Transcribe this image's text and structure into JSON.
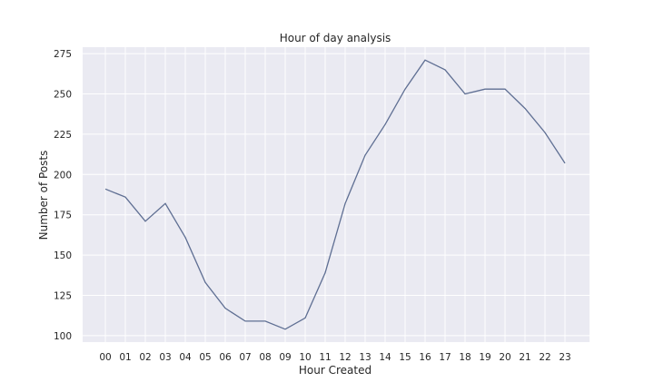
{
  "chart_data": {
    "type": "line",
    "title": "Hour of day analysis",
    "xlabel": "Hour Created",
    "ylabel": "Number of Posts",
    "categories": [
      "00",
      "01",
      "02",
      "03",
      "04",
      "05",
      "06",
      "07",
      "08",
      "09",
      "10",
      "11",
      "12",
      "13",
      "14",
      "15",
      "16",
      "17",
      "18",
      "19",
      "20",
      "21",
      "22",
      "23"
    ],
    "series": [
      {
        "values": [
          191,
          186,
          171,
          182,
          161,
          133,
          117,
          109,
          109,
          104,
          111,
          139,
          182,
          212,
          231,
          253,
          271,
          265,
          250,
          253,
          253,
          241,
          226,
          207
        ],
        "color": "#5f6f93"
      }
    ],
    "yticks": [
      100,
      125,
      150,
      175,
      200,
      225,
      250,
      275
    ],
    "ylim": [
      96,
      279
    ],
    "grid": true,
    "background_color": "#eaeaf2",
    "legend": "none"
  }
}
